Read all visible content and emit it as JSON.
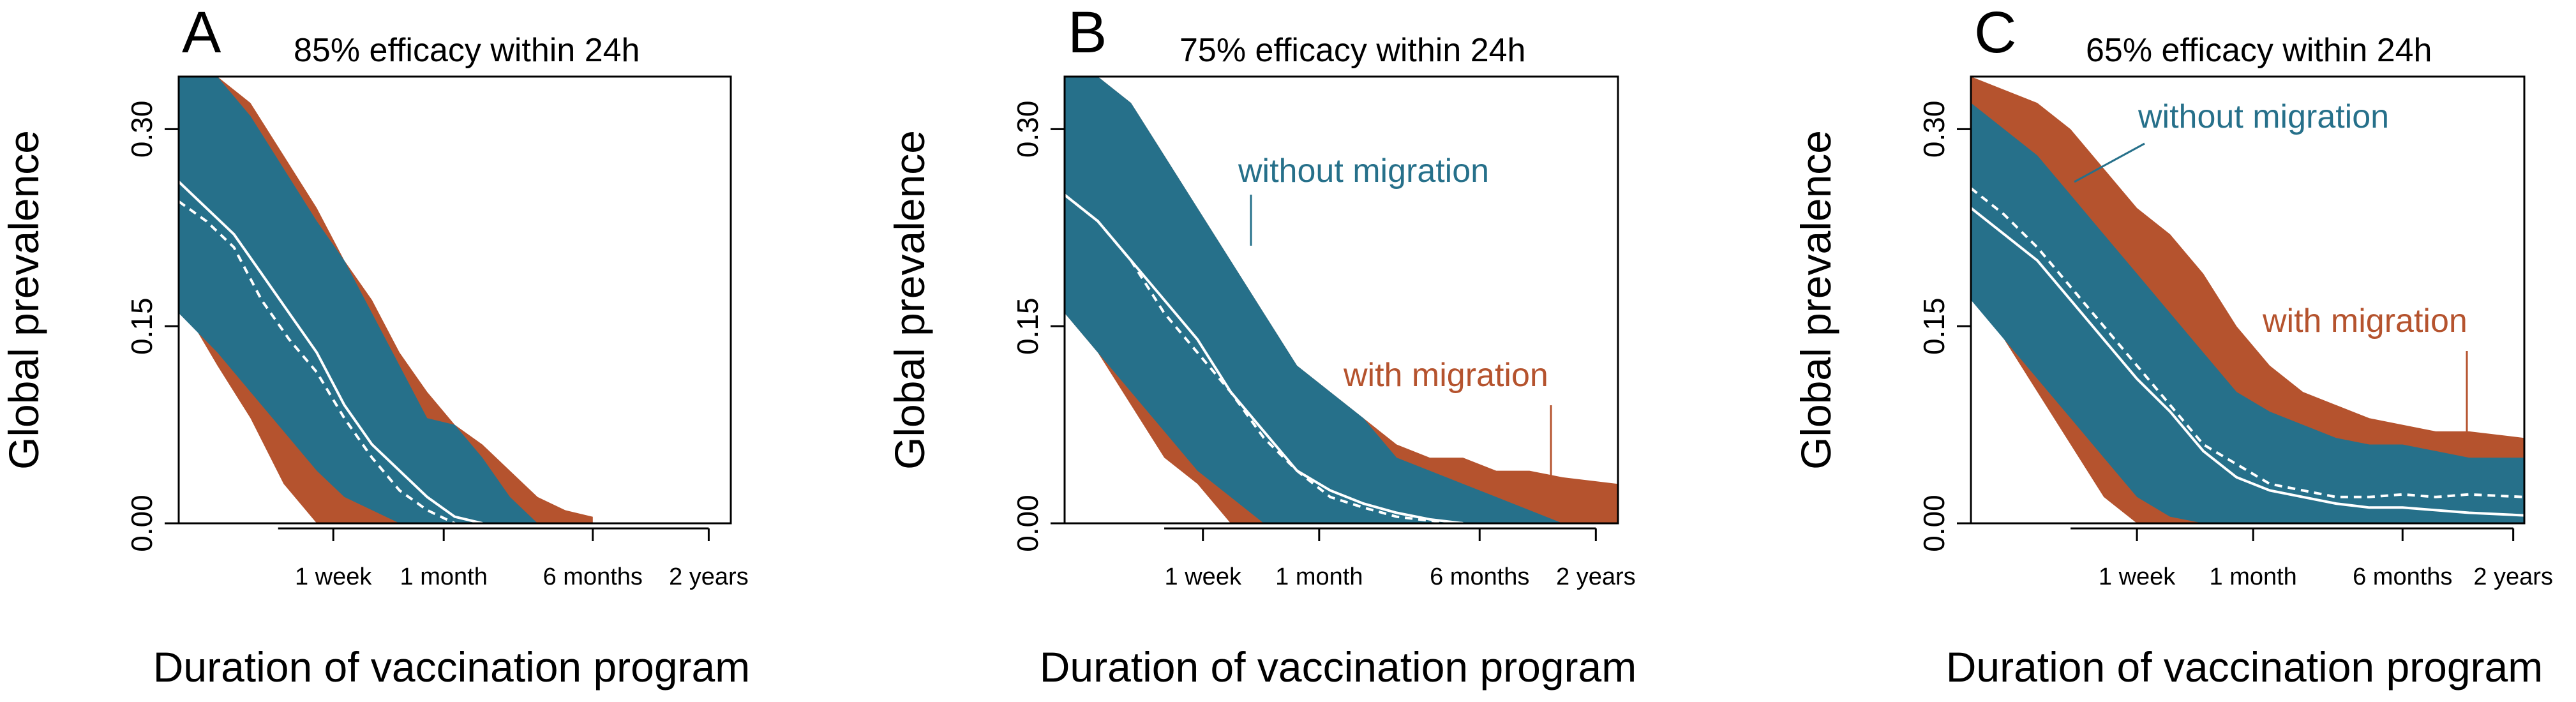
{
  "colors": {
    "with_migration": "#b5532e",
    "without_migration": "#26708a",
    "median_line": "#ffffff",
    "axis": "#000000"
  },
  "chart_data": [
    {
      "type": "area",
      "panel": "A",
      "title": "85% efficacy within 24h",
      "xlabel": "Duration of vaccination program",
      "ylabel": "Global prevalence",
      "x_ticks": [
        "1 week",
        "1 month",
        "6 months",
        "2 years"
      ],
      "y_ticks": [
        0.0,
        0.15,
        0.3
      ],
      "ylim": [
        0,
        0.34
      ],
      "xlim": [
        0,
        1
      ],
      "grid": false,
      "annotations": [],
      "series": [
        {
          "name": "with migration",
          "x": [
            0,
            0.07,
            0.13,
            0.19,
            0.25,
            0.3,
            0.35,
            0.4,
            0.45,
            0.5,
            0.55,
            0.6,
            0.65,
            0.7,
            0.75
          ],
          "upper": [
            0.34,
            0.34,
            0.32,
            0.28,
            0.24,
            0.2,
            0.17,
            0.13,
            0.1,
            0.075,
            0.06,
            0.04,
            0.02,
            0.01,
            0.005
          ],
          "lower": [
            0.17,
            0.12,
            0.08,
            0.03,
            0,
            0,
            0,
            0,
            0,
            0,
            0,
            0,
            0,
            0,
            0
          ]
        },
        {
          "name": "without migration",
          "x": [
            0,
            0.07,
            0.13,
            0.19,
            0.25,
            0.3,
            0.35,
            0.4,
            0.45,
            0.5,
            0.55,
            0.6,
            0.65
          ],
          "upper": [
            0.34,
            0.34,
            0.31,
            0.27,
            0.23,
            0.2,
            0.16,
            0.12,
            0.08,
            0.075,
            0.05,
            0.02,
            0
          ],
          "lower": [
            0.16,
            0.13,
            0.1,
            0.07,
            0.04,
            0.02,
            0.01,
            0,
            0,
            0,
            0,
            0,
            0
          ]
        }
      ],
      "median_solid": {
        "x": [
          0,
          0.05,
          0.1,
          0.15,
          0.2,
          0.25,
          0.3,
          0.35,
          0.4,
          0.45,
          0.5,
          0.55
        ],
        "y": [
          0.26,
          0.24,
          0.22,
          0.19,
          0.16,
          0.13,
          0.09,
          0.06,
          0.04,
          0.02,
          0.005,
          0
        ]
      },
      "median_dashed": {
        "x": [
          0,
          0.05,
          0.1,
          0.15,
          0.2,
          0.25,
          0.3,
          0.35,
          0.4,
          0.45,
          0.5
        ],
        "y": [
          0.245,
          0.23,
          0.21,
          0.17,
          0.14,
          0.115,
          0.08,
          0.05,
          0.025,
          0.01,
          0
        ]
      }
    },
    {
      "type": "area",
      "panel": "B",
      "title": "75% efficacy within 24h",
      "xlabel": "Duration of vaccination program",
      "ylabel": "Global prevalence",
      "x_ticks": [
        "1 week",
        "1 month",
        "6 months",
        "2 years"
      ],
      "y_ticks": [
        0.0,
        0.15,
        0.3
      ],
      "ylim": [
        0,
        0.34
      ],
      "xlim": [
        0,
        1
      ],
      "grid": false,
      "annotations": [
        "without migration",
        "with migration"
      ],
      "series": [
        {
          "name": "with migration",
          "x": [
            0,
            0.06,
            0.12,
            0.18,
            0.24,
            0.3,
            0.36,
            0.42,
            0.48,
            0.54,
            0.6,
            0.66,
            0.72,
            0.78,
            0.84,
            0.9,
            1
          ],
          "upper": [
            0.34,
            0.34,
            0.32,
            0.28,
            0.24,
            0.2,
            0.16,
            0.12,
            0.1,
            0.08,
            0.06,
            0.05,
            0.05,
            0.04,
            0.04,
            0.035,
            0.03
          ],
          "lower": [
            0.16,
            0.13,
            0.09,
            0.05,
            0.03,
            0,
            0,
            0,
            0,
            0,
            0,
            0,
            0,
            0,
            0,
            0,
            0
          ]
        },
        {
          "name": "without migration",
          "x": [
            0,
            0.06,
            0.12,
            0.18,
            0.24,
            0.3,
            0.36,
            0.42,
            0.48,
            0.54,
            0.6,
            0.66,
            0.72,
            0.78,
            0.84,
            0.9
          ],
          "upper": [
            0.34,
            0.34,
            0.32,
            0.28,
            0.24,
            0.2,
            0.16,
            0.12,
            0.1,
            0.08,
            0.05,
            0.04,
            0.03,
            0.02,
            0.01,
            0
          ],
          "lower": [
            0.16,
            0.13,
            0.1,
            0.07,
            0.04,
            0.02,
            0,
            0,
            0,
            0,
            0,
            0,
            0,
            0,
            0,
            0
          ]
        }
      ],
      "median_solid": {
        "x": [
          0,
          0.06,
          0.12,
          0.18,
          0.24,
          0.3,
          0.36,
          0.42,
          0.48,
          0.54,
          0.6,
          0.66,
          0.72
        ],
        "y": [
          0.25,
          0.23,
          0.2,
          0.17,
          0.14,
          0.1,
          0.07,
          0.04,
          0.025,
          0.015,
          0.008,
          0.003,
          0
        ]
      },
      "median_dashed": {
        "x": [
          0,
          0.06,
          0.12,
          0.18,
          0.24,
          0.3,
          0.36,
          0.42,
          0.48,
          0.54,
          0.6,
          0.66,
          0.72
        ],
        "y": [
          0.25,
          0.23,
          0.2,
          0.16,
          0.13,
          0.1,
          0.065,
          0.04,
          0.02,
          0.012,
          0.005,
          0.002,
          0
        ]
      }
    },
    {
      "type": "area",
      "panel": "C",
      "title": "65% efficacy within 24h",
      "xlabel": "Duration of vaccination program",
      "ylabel": "Global prevalence",
      "x_ticks": [
        "1 week",
        "1 month",
        "6 months",
        "2 years"
      ],
      "y_ticks": [
        0.0,
        0.15,
        0.3
      ],
      "ylim": [
        0,
        0.34
      ],
      "xlim": [
        0,
        1
      ],
      "grid": false,
      "annotations": [
        "without migration",
        "with migration"
      ],
      "series": [
        {
          "name": "with migration",
          "x": [
            0,
            0.06,
            0.12,
            0.18,
            0.24,
            0.3,
            0.36,
            0.42,
            0.48,
            0.54,
            0.6,
            0.66,
            0.72,
            0.78,
            0.84,
            0.9,
            1
          ],
          "upper": [
            0.34,
            0.33,
            0.32,
            0.3,
            0.27,
            0.24,
            0.22,
            0.19,
            0.15,
            0.12,
            0.1,
            0.09,
            0.08,
            0.075,
            0.07,
            0.07,
            0.065
          ],
          "lower": [
            0.18,
            0.14,
            0.1,
            0.06,
            0.02,
            0,
            0,
            0,
            0,
            0,
            0,
            0,
            0,
            0,
            0,
            0,
            0
          ]
        },
        {
          "name": "without migration",
          "x": [
            0,
            0.06,
            0.12,
            0.18,
            0.24,
            0.3,
            0.36,
            0.42,
            0.48,
            0.54,
            0.6,
            0.66,
            0.72,
            0.78,
            0.84,
            0.9,
            1
          ],
          "upper": [
            0.32,
            0.3,
            0.28,
            0.25,
            0.22,
            0.19,
            0.16,
            0.13,
            0.1,
            0.085,
            0.075,
            0.065,
            0.06,
            0.06,
            0.055,
            0.05,
            0.05
          ],
          "lower": [
            0.17,
            0.14,
            0.11,
            0.08,
            0.05,
            0.02,
            0.005,
            0,
            0,
            0,
            0,
            0,
            0,
            0,
            0,
            0,
            0
          ]
        }
      ],
      "median_solid": {
        "x": [
          0,
          0.06,
          0.12,
          0.18,
          0.24,
          0.3,
          0.36,
          0.42,
          0.48,
          0.54,
          0.6,
          0.66,
          0.72,
          0.78,
          0.84,
          0.9,
          1
        ],
        "y": [
          0.24,
          0.22,
          0.2,
          0.17,
          0.14,
          0.11,
          0.085,
          0.055,
          0.035,
          0.025,
          0.02,
          0.015,
          0.012,
          0.012,
          0.01,
          0.008,
          0.006
        ]
      },
      "median_dashed": {
        "x": [
          0,
          0.06,
          0.12,
          0.18,
          0.24,
          0.3,
          0.36,
          0.42,
          0.48,
          0.54,
          0.6,
          0.66,
          0.72,
          0.78,
          0.84,
          0.9,
          1
        ],
        "y": [
          0.255,
          0.235,
          0.21,
          0.18,
          0.15,
          0.12,
          0.09,
          0.06,
          0.045,
          0.03,
          0.025,
          0.02,
          0.02,
          0.022,
          0.02,
          0.022,
          0.02
        ]
      }
    }
  ]
}
